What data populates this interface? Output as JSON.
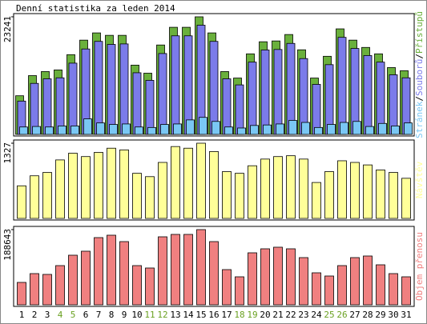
{
  "chart_data": [
    {
      "type": "bar",
      "title": "Denní statistika za leden 2014",
      "categories": [
        "1",
        "2",
        "3",
        "4",
        "5",
        "6",
        "7",
        "8",
        "9",
        "10",
        "11",
        "12",
        "13",
        "14",
        "15",
        "16",
        "17",
        "18",
        "19",
        "20",
        "21",
        "22",
        "23",
        "24",
        "25",
        "26",
        "27",
        "28",
        "29",
        "30",
        "31"
      ],
      "category_colors": [
        "#000000",
        "#000000",
        "#000000",
        "#6aa121",
        "#6aa121",
        "#000000",
        "#000000",
        "#000000",
        "#000000",
        "#000000",
        "#6aa121",
        "#6aa121",
        "#000000",
        "#000000",
        "#000000",
        "#000000",
        "#000000",
        "#6aa121",
        "#6aa121",
        "#000000",
        "#000000",
        "#000000",
        "#000000",
        "#000000",
        "#6aa121",
        "#6aa121",
        "#000000",
        "#000000",
        "#000000",
        "#000000",
        "#000000"
      ],
      "legend_separator": "/",
      "ylim": [
        0,
        23241
      ],
      "series": [
        {
          "name": "Přístupů",
          "color": "#6ab03c",
          "values": [
            7640,
            11620,
            12420,
            12740,
            15760,
            18630,
            20060,
            19580,
            19580,
            13690,
            12100,
            17670,
            21170,
            21170,
            23241,
            20060,
            12420,
            11140,
            15920,
            18310,
            18470,
            19740,
            16720,
            11140,
            15440,
            20860,
            18630,
            17190,
            15920,
            13210,
            12580
          ]
        },
        {
          "name": "Souborů",
          "color": "#7b7bea",
          "values": [
            6900,
            10400,
            11300,
            11500,
            14400,
            17200,
            18700,
            18100,
            18200,
            12500,
            11000,
            16300,
            19800,
            19800,
            21900,
            18700,
            11300,
            10100,
            14600,
            17000,
            17100,
            18300,
            15300,
            10200,
            14100,
            19500,
            17300,
            15900,
            14600,
            12100,
            11500
          ]
        },
        {
          "name": "Stránek",
          "color": "#7ac7f4",
          "values": [
            2100,
            2200,
            2100,
            2300,
            2300,
            3700,
            2900,
            2600,
            2700,
            2100,
            2000,
            2600,
            2700,
            3500,
            4000,
            3200,
            2100,
            1900,
            2400,
            2500,
            2700,
            3400,
            3000,
            2000,
            2600,
            3000,
            3200,
            2200,
            2800,
            2300,
            2900
          ]
        }
      ]
    },
    {
      "type": "bar",
      "ylim": [
        0,
        1327
      ],
      "series": [
        {
          "name": "Návštěv",
          "color": "#ffff99",
          "values": [
            575,
            752,
            811,
            1032,
            1150,
            1091,
            1165,
            1239,
            1209,
            796,
            737,
            988,
            1268,
            1239,
            1327,
            1180,
            826,
            796,
            929,
            1047,
            1091,
            1106,
            1047,
            634,
            826,
            1017,
            988,
            944,
            855,
            811,
            708
          ]
        }
      ]
    },
    {
      "type": "bar",
      "ylim": [
        0,
        188643
      ],
      "series": [
        {
          "name": "Objem přenosu",
          "color": "#f08080",
          "values": [
            56200,
            78270,
            76260,
            98340,
            124430,
            134470,
            168580,
            174600,
            158550,
            98340,
            92320,
            170590,
            176600,
            176600,
            188643,
            158550,
            88310,
            70240,
            130450,
            140490,
            144500,
            140490,
            118410,
            80280,
            72250,
            98340,
            118410,
            122430,
            100350,
            78270,
            70240
          ]
        }
      ]
    }
  ]
}
